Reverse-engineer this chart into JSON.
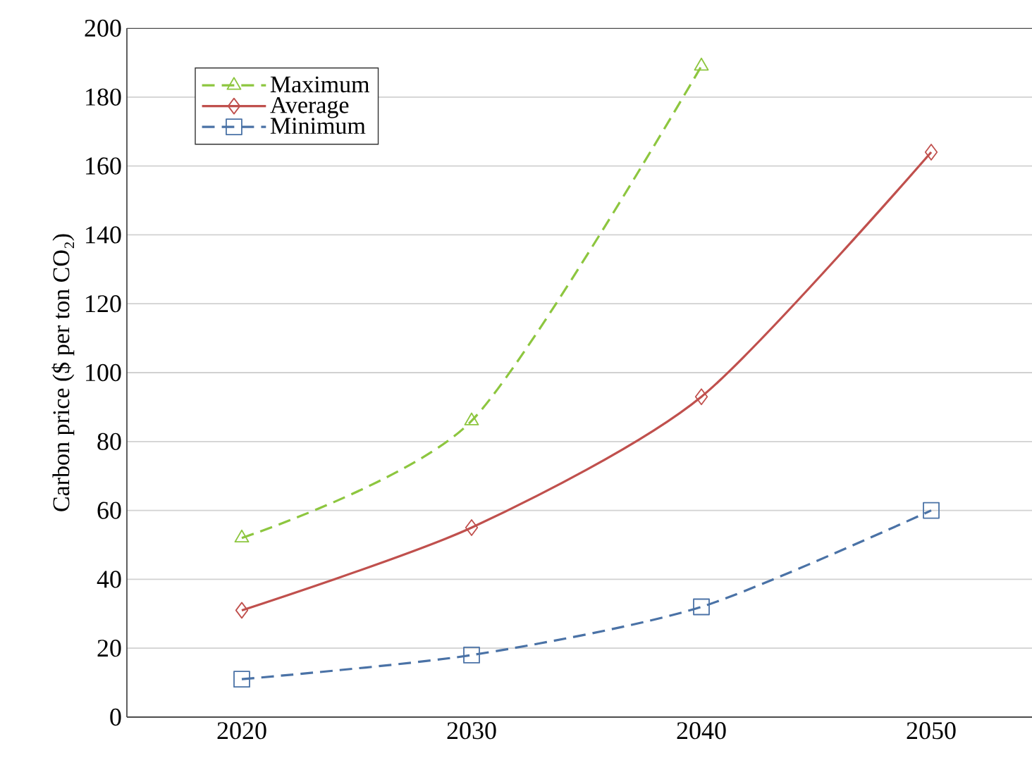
{
  "chart_data": {
    "type": "line",
    "ylabel": "Carbon price ($ per ton CO₂)",
    "categories": [
      "2020",
      "2030",
      "2040",
      "2050"
    ],
    "series": [
      {
        "name": "Maximum",
        "color": "#8dc63f",
        "values": [
          52,
          86,
          189,
          null
        ],
        "marker": "triangle",
        "line_style": "dashed"
      },
      {
        "name": "Average",
        "color": "#c0504d",
        "values": [
          31,
          55,
          93,
          164
        ],
        "marker": "diamond",
        "line_style": "solid"
      },
      {
        "name": "Minimum",
        "color": "#4a72a6",
        "values": [
          11,
          18,
          32,
          60
        ],
        "marker": "square",
        "line_style": "dashed"
      }
    ],
    "ylim": [
      0,
      200
    ],
    "yticks": [
      0,
      20,
      40,
      60,
      80,
      100,
      120,
      140,
      160,
      180,
      200
    ],
    "grid": "y",
    "legend": "top left"
  }
}
